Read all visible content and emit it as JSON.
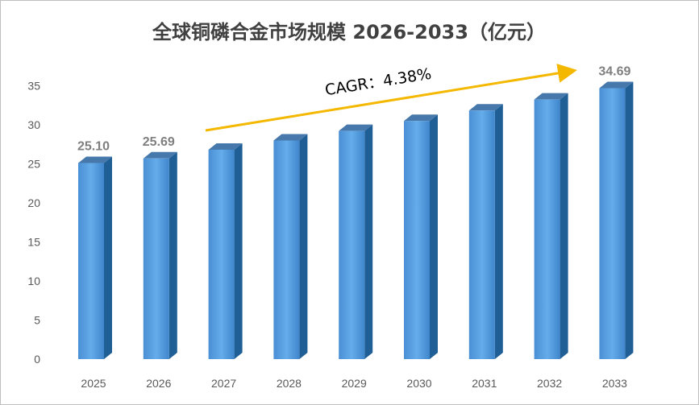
{
  "chart_data": {
    "type": "bar",
    "title": "全球铜磷合金市场规模 2026-2033（亿元）",
    "categories": [
      "2025",
      "2026",
      "2027",
      "2028",
      "2029",
      "2030",
      "2031",
      "2032",
      "2033"
    ],
    "values": [
      25.1,
      25.69,
      26.81,
      27.99,
      29.21,
      30.49,
      31.83,
      33.23,
      34.69
    ],
    "value_labels": [
      "25.10",
      "25.69",
      "",
      "",
      "",
      "",
      "",
      "",
      "34.69"
    ],
    "y_ticks": [
      "0",
      "5",
      "10",
      "15",
      "20",
      "25",
      "30",
      "35"
    ],
    "ylim": [
      0,
      35
    ],
    "annotation": "CAGR：4.38%",
    "bar_color": "#5b9bd5",
    "arrow_color": "#f4b800",
    "grid": false,
    "legend": "none"
  }
}
